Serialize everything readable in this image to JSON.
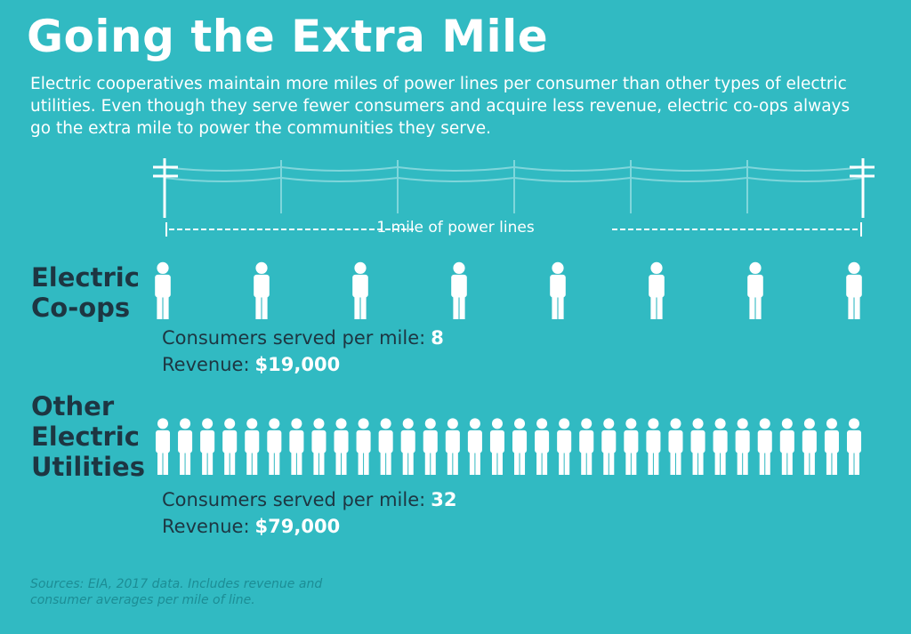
{
  "header": {
    "title": "Going the Extra Mile",
    "subtitle": "Electric cooperatives maintain more miles of power lines per consumer than other types of electric utilities. Even though they serve fewer consumers and acquire less revenue, electric co-ops always go the extra mile to power the communities they serve."
  },
  "scale": {
    "label": "1 mile of power lines"
  },
  "groups": [
    {
      "name": "Electric Co-ops",
      "consumers_label": "Consumers served per mile:",
      "consumers": 8,
      "revenue_label": "Revenue:",
      "revenue": "$19,000"
    },
    {
      "name": "Other Electric Utilities",
      "consumers_label": "Consumers served per mile:",
      "consumers": 32,
      "revenue_label": "Revenue:",
      "revenue": "$79,000"
    }
  ],
  "footer": {
    "source": "Sources: EIA, 2017 data. Includes revenue and consumer averages per mile of line."
  }
}
